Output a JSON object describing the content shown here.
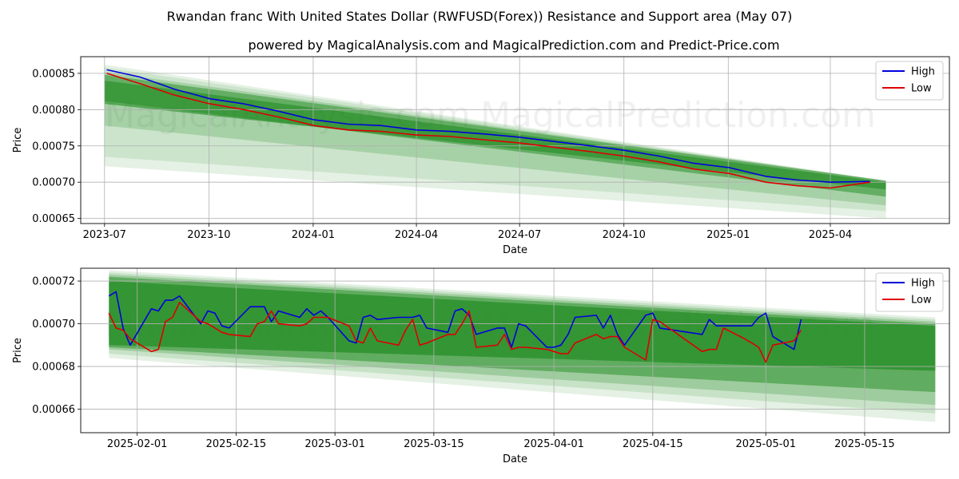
{
  "titles": {
    "line1": "Rwandan franc With United States Dollar (RWFUSD(Forex)) Resistance and Support area (May 07)",
    "line2": "powered by MagicalAnalysis.com and MagicalPrediction.com and Predict-Price.com"
  },
  "watermarks": [
    "MagicalAnalysis.com",
    "MagicalPrediction.com"
  ],
  "colors": {
    "high": "#0000dd",
    "low": "#dd0000",
    "band": "#228b22",
    "grid": "#b0b0b0"
  },
  "chart_data": [
    {
      "type": "line",
      "xlabel": "Date",
      "ylabel": "Price",
      "x_ticks": [
        "2023-07",
        "2023-10",
        "2024-01",
        "2024-04",
        "2024-07",
        "2024-10",
        "2025-01",
        "2025-04"
      ],
      "y_ticks": [
        "0.00065",
        "0.00070",
        "0.00075",
        "0.00080",
        "0.00085"
      ],
      "xlim": [
        "2023-06-10",
        "2025-07-15"
      ],
      "ylim": [
        0.000643,
        0.000873
      ],
      "grid": true,
      "legend": "top-right",
      "series": [
        {
          "name": "High",
          "x": [
            "2023-07-03",
            "2023-08-01",
            "2023-09-01",
            "2023-10-02",
            "2023-11-01",
            "2023-12-01",
            "2024-01-02",
            "2024-02-01",
            "2024-03-01",
            "2024-04-01",
            "2024-05-01",
            "2024-06-03",
            "2024-07-01",
            "2024-08-01",
            "2024-09-02",
            "2024-10-01",
            "2024-11-01",
            "2024-12-02",
            "2025-01-02",
            "2025-02-03",
            "2025-03-03",
            "2025-04-01",
            "2025-05-06"
          ],
          "y": [
            0.000855,
            0.000845,
            0.000828,
            0.000815,
            0.000808,
            0.000798,
            0.000786,
            0.00078,
            0.000778,
            0.000772,
            0.00077,
            0.000766,
            0.000762,
            0.000756,
            0.00075,
            0.000744,
            0.000736,
            0.000726,
            0.00072,
            0.000708,
            0.000703,
            0.0007,
            0.000701
          ]
        },
        {
          "name": "Low",
          "x": [
            "2023-07-03",
            "2023-08-01",
            "2023-09-01",
            "2023-10-02",
            "2023-11-01",
            "2023-12-01",
            "2024-01-02",
            "2024-02-01",
            "2024-03-01",
            "2024-04-01",
            "2024-05-01",
            "2024-06-03",
            "2024-07-01",
            "2024-08-01",
            "2024-09-02",
            "2024-10-01",
            "2024-11-01",
            "2024-12-02",
            "2025-01-02",
            "2025-02-03",
            "2025-03-03",
            "2025-04-01",
            "2025-05-06"
          ],
          "y": [
            0.00085,
            0.000836,
            0.00082,
            0.000808,
            0.0008,
            0.00079,
            0.000778,
            0.000772,
            0.00077,
            0.000765,
            0.000763,
            0.000758,
            0.000754,
            0.000748,
            0.000742,
            0.000736,
            0.000728,
            0.000718,
            0.000712,
            0.0007,
            0.000695,
            0.000692,
            0.0007
          ]
        }
      ],
      "bands": [
        {
          "x": [
            "2023-07-01",
            "2025-05-20"
          ],
          "upper": [
            0.000862,
            0.000702
          ],
          "lower": [
            0.000722,
            0.00065
          ],
          "opacity": 0.12
        },
        {
          "x": [
            "2023-07-01",
            "2025-05-20"
          ],
          "upper": [
            0.000858,
            0.000702
          ],
          "lower": [
            0.000735,
            0.00066
          ],
          "opacity": 0.12
        },
        {
          "x": [
            "2023-07-01",
            "2025-05-20"
          ],
          "upper": [
            0.000852,
            0.000702
          ],
          "lower": [
            0.000778,
            0.000668
          ],
          "opacity": 0.22
        },
        {
          "x": [
            "2023-07-01",
            "2025-05-20"
          ],
          "upper": [
            0.000848,
            0.000702
          ],
          "lower": [
            0.000812,
            0.00068
          ],
          "opacity": 0.5
        },
        {
          "x": [
            "2023-07-01",
            "2025-05-20"
          ],
          "upper": [
            0.00084,
            0.0007
          ],
          "lower": [
            0.000808,
            0.00069
          ],
          "opacity": 0.6
        }
      ]
    },
    {
      "type": "line",
      "xlabel": "Date",
      "ylabel": "Price",
      "x_ticks": [
        "2025-02-01",
        "2025-02-15",
        "2025-03-01",
        "2025-03-15",
        "2025-04-01",
        "2025-04-15",
        "2025-05-01",
        "2025-05-15"
      ],
      "y_ticks": [
        "0.00066",
        "0.00068",
        "0.00070",
        "0.00072"
      ],
      "xlim": [
        "2025-01-24",
        "2025-05-27"
      ],
      "ylim": [
        0.000649,
        0.000726
      ],
      "grid": true,
      "legend": "top-right",
      "series": [
        {
          "name": "High",
          "x": [
            "2025-01-28",
            "2025-01-29",
            "2025-01-30",
            "2025-01-31",
            "2025-02-03",
            "2025-02-04",
            "2025-02-05",
            "2025-02-06",
            "2025-02-07",
            "2025-02-10",
            "2025-02-11",
            "2025-02-12",
            "2025-02-13",
            "2025-02-14",
            "2025-02-17",
            "2025-02-18",
            "2025-02-19",
            "2025-02-20",
            "2025-02-21",
            "2025-02-24",
            "2025-02-25",
            "2025-02-26",
            "2025-02-27",
            "2025-02-28",
            "2025-03-03",
            "2025-03-04",
            "2025-03-05",
            "2025-03-06",
            "2025-03-07",
            "2025-03-10",
            "2025-03-11",
            "2025-03-12",
            "2025-03-13",
            "2025-03-14",
            "2025-03-17",
            "2025-03-18",
            "2025-03-19",
            "2025-03-20",
            "2025-03-21",
            "2025-03-24",
            "2025-03-25",
            "2025-03-26",
            "2025-03-27",
            "2025-03-28",
            "2025-03-31",
            "2025-04-01",
            "2025-04-02",
            "2025-04-03",
            "2025-04-04",
            "2025-04-07",
            "2025-04-08",
            "2025-04-09",
            "2025-04-10",
            "2025-04-11",
            "2025-04-14",
            "2025-04-15",
            "2025-04-16",
            "2025-04-22",
            "2025-04-23",
            "2025-04-24",
            "2025-04-25",
            "2025-04-28",
            "2025-04-29",
            "2025-04-30",
            "2025-05-01",
            "2025-05-02",
            "2025-05-05",
            "2025-05-06"
          ],
          "y": [
            0.000713,
            0.000715,
            0.000698,
            0.00069,
            0.000707,
            0.000706,
            0.000711,
            0.000711,
            0.000713,
            0.0007,
            0.000706,
            0.000705,
            0.000699,
            0.000698,
            0.000708,
            0.000708,
            0.000708,
            0.000701,
            0.000706,
            0.000703,
            0.000707,
            0.000704,
            0.000706,
            0.000703,
            0.000692,
            0.000691,
            0.000703,
            0.000704,
            0.000702,
            0.000703,
            0.000703,
            0.000703,
            0.000704,
            0.000698,
            0.000696,
            0.000706,
            0.000707,
            0.000704,
            0.000695,
            0.000698,
            0.000698,
            0.000689,
            0.0007,
            0.000699,
            0.000689,
            0.000689,
            0.00069,
            0.000695,
            0.000703,
            0.000704,
            0.000698,
            0.000704,
            0.000695,
            0.00069,
            0.000704,
            0.000705,
            0.000698,
            0.000695,
            0.000702,
            0.000699,
            0.000699,
            0.000699,
            0.000699,
            0.000703,
            0.000705,
            0.000694,
            0.000688,
            0.000702
          ]
        },
        {
          "name": "Low",
          "x": [
            "2025-01-28",
            "2025-01-29",
            "2025-01-30",
            "2025-01-31",
            "2025-02-03",
            "2025-02-04",
            "2025-02-05",
            "2025-02-06",
            "2025-02-07",
            "2025-02-10",
            "2025-02-11",
            "2025-02-12",
            "2025-02-13",
            "2025-02-14",
            "2025-02-17",
            "2025-02-18",
            "2025-02-19",
            "2025-02-20",
            "2025-02-21",
            "2025-02-24",
            "2025-02-25",
            "2025-02-26",
            "2025-02-27",
            "2025-02-28",
            "2025-03-03",
            "2025-03-04",
            "2025-03-05",
            "2025-03-06",
            "2025-03-07",
            "2025-03-10",
            "2025-03-11",
            "2025-03-12",
            "2025-03-13",
            "2025-03-14",
            "2025-03-17",
            "2025-03-18",
            "2025-03-19",
            "2025-03-20",
            "2025-03-21",
            "2025-03-24",
            "2025-03-25",
            "2025-03-26",
            "2025-03-27",
            "2025-03-28",
            "2025-03-31",
            "2025-04-01",
            "2025-04-02",
            "2025-04-03",
            "2025-04-04",
            "2025-04-07",
            "2025-04-08",
            "2025-04-09",
            "2025-04-10",
            "2025-04-11",
            "2025-04-14",
            "2025-04-15",
            "2025-04-16",
            "2025-04-22",
            "2025-04-23",
            "2025-04-24",
            "2025-04-25",
            "2025-04-28",
            "2025-04-29",
            "2025-04-30",
            "2025-05-01",
            "2025-05-02",
            "2025-05-05",
            "2025-05-06"
          ],
          "y": [
            0.000705,
            0.000698,
            0.000697,
            0.000693,
            0.000687,
            0.000688,
            0.000701,
            0.000703,
            0.00071,
            0.000701,
            0.0007,
            0.000698,
            0.000696,
            0.000695,
            0.000694,
            0.0007,
            0.000701,
            0.000706,
            0.0007,
            0.000699,
            0.0007,
            0.000703,
            0.000703,
            0.000703,
            0.000699,
            0.000692,
            0.000691,
            0.000698,
            0.000692,
            0.00069,
            0.000697,
            0.000702,
            0.00069,
            0.000691,
            0.000695,
            0.000695,
            0.0007,
            0.000706,
            0.000689,
            0.00069,
            0.000695,
            0.000688,
            0.000689,
            0.000689,
            0.000688,
            0.000687,
            0.000686,
            0.000686,
            0.000691,
            0.000695,
            0.000693,
            0.000694,
            0.000694,
            0.000689,
            0.000683,
            0.000702,
            0.000701,
            0.000687,
            0.000688,
            0.000688,
            0.000698,
            0.000693,
            0.000691,
            0.000689,
            0.000682,
            0.00069,
            0.000692,
            0.000697
          ]
        }
      ],
      "bands": [
        {
          "x": [
            "2025-01-28",
            "2025-05-25"
          ],
          "upper": [
            0.000725,
            0.000703
          ],
          "lower": [
            0.000684,
            0.000654
          ],
          "opacity": 0.12
        },
        {
          "x": [
            "2025-01-28",
            "2025-05-25"
          ],
          "upper": [
            0.000724,
            0.000702
          ],
          "lower": [
            0.000686,
            0.000658
          ],
          "opacity": 0.15
        },
        {
          "x": [
            "2025-01-28",
            "2025-05-25"
          ],
          "upper": [
            0.000723,
            0.000701
          ],
          "lower": [
            0.000688,
            0.000662
          ],
          "opacity": 0.25
        },
        {
          "x": [
            "2025-01-28",
            "2025-05-25"
          ],
          "upper": [
            0.000722,
            0.0007
          ],
          "lower": [
            0.000689,
            0.000668
          ],
          "opacity": 0.5
        },
        {
          "x": [
            "2025-01-28",
            "2025-05-25"
          ],
          "upper": [
            0.00072,
            0.000699
          ],
          "lower": [
            0.00069,
            0.000678
          ],
          "opacity": 0.7
        }
      ]
    }
  ]
}
